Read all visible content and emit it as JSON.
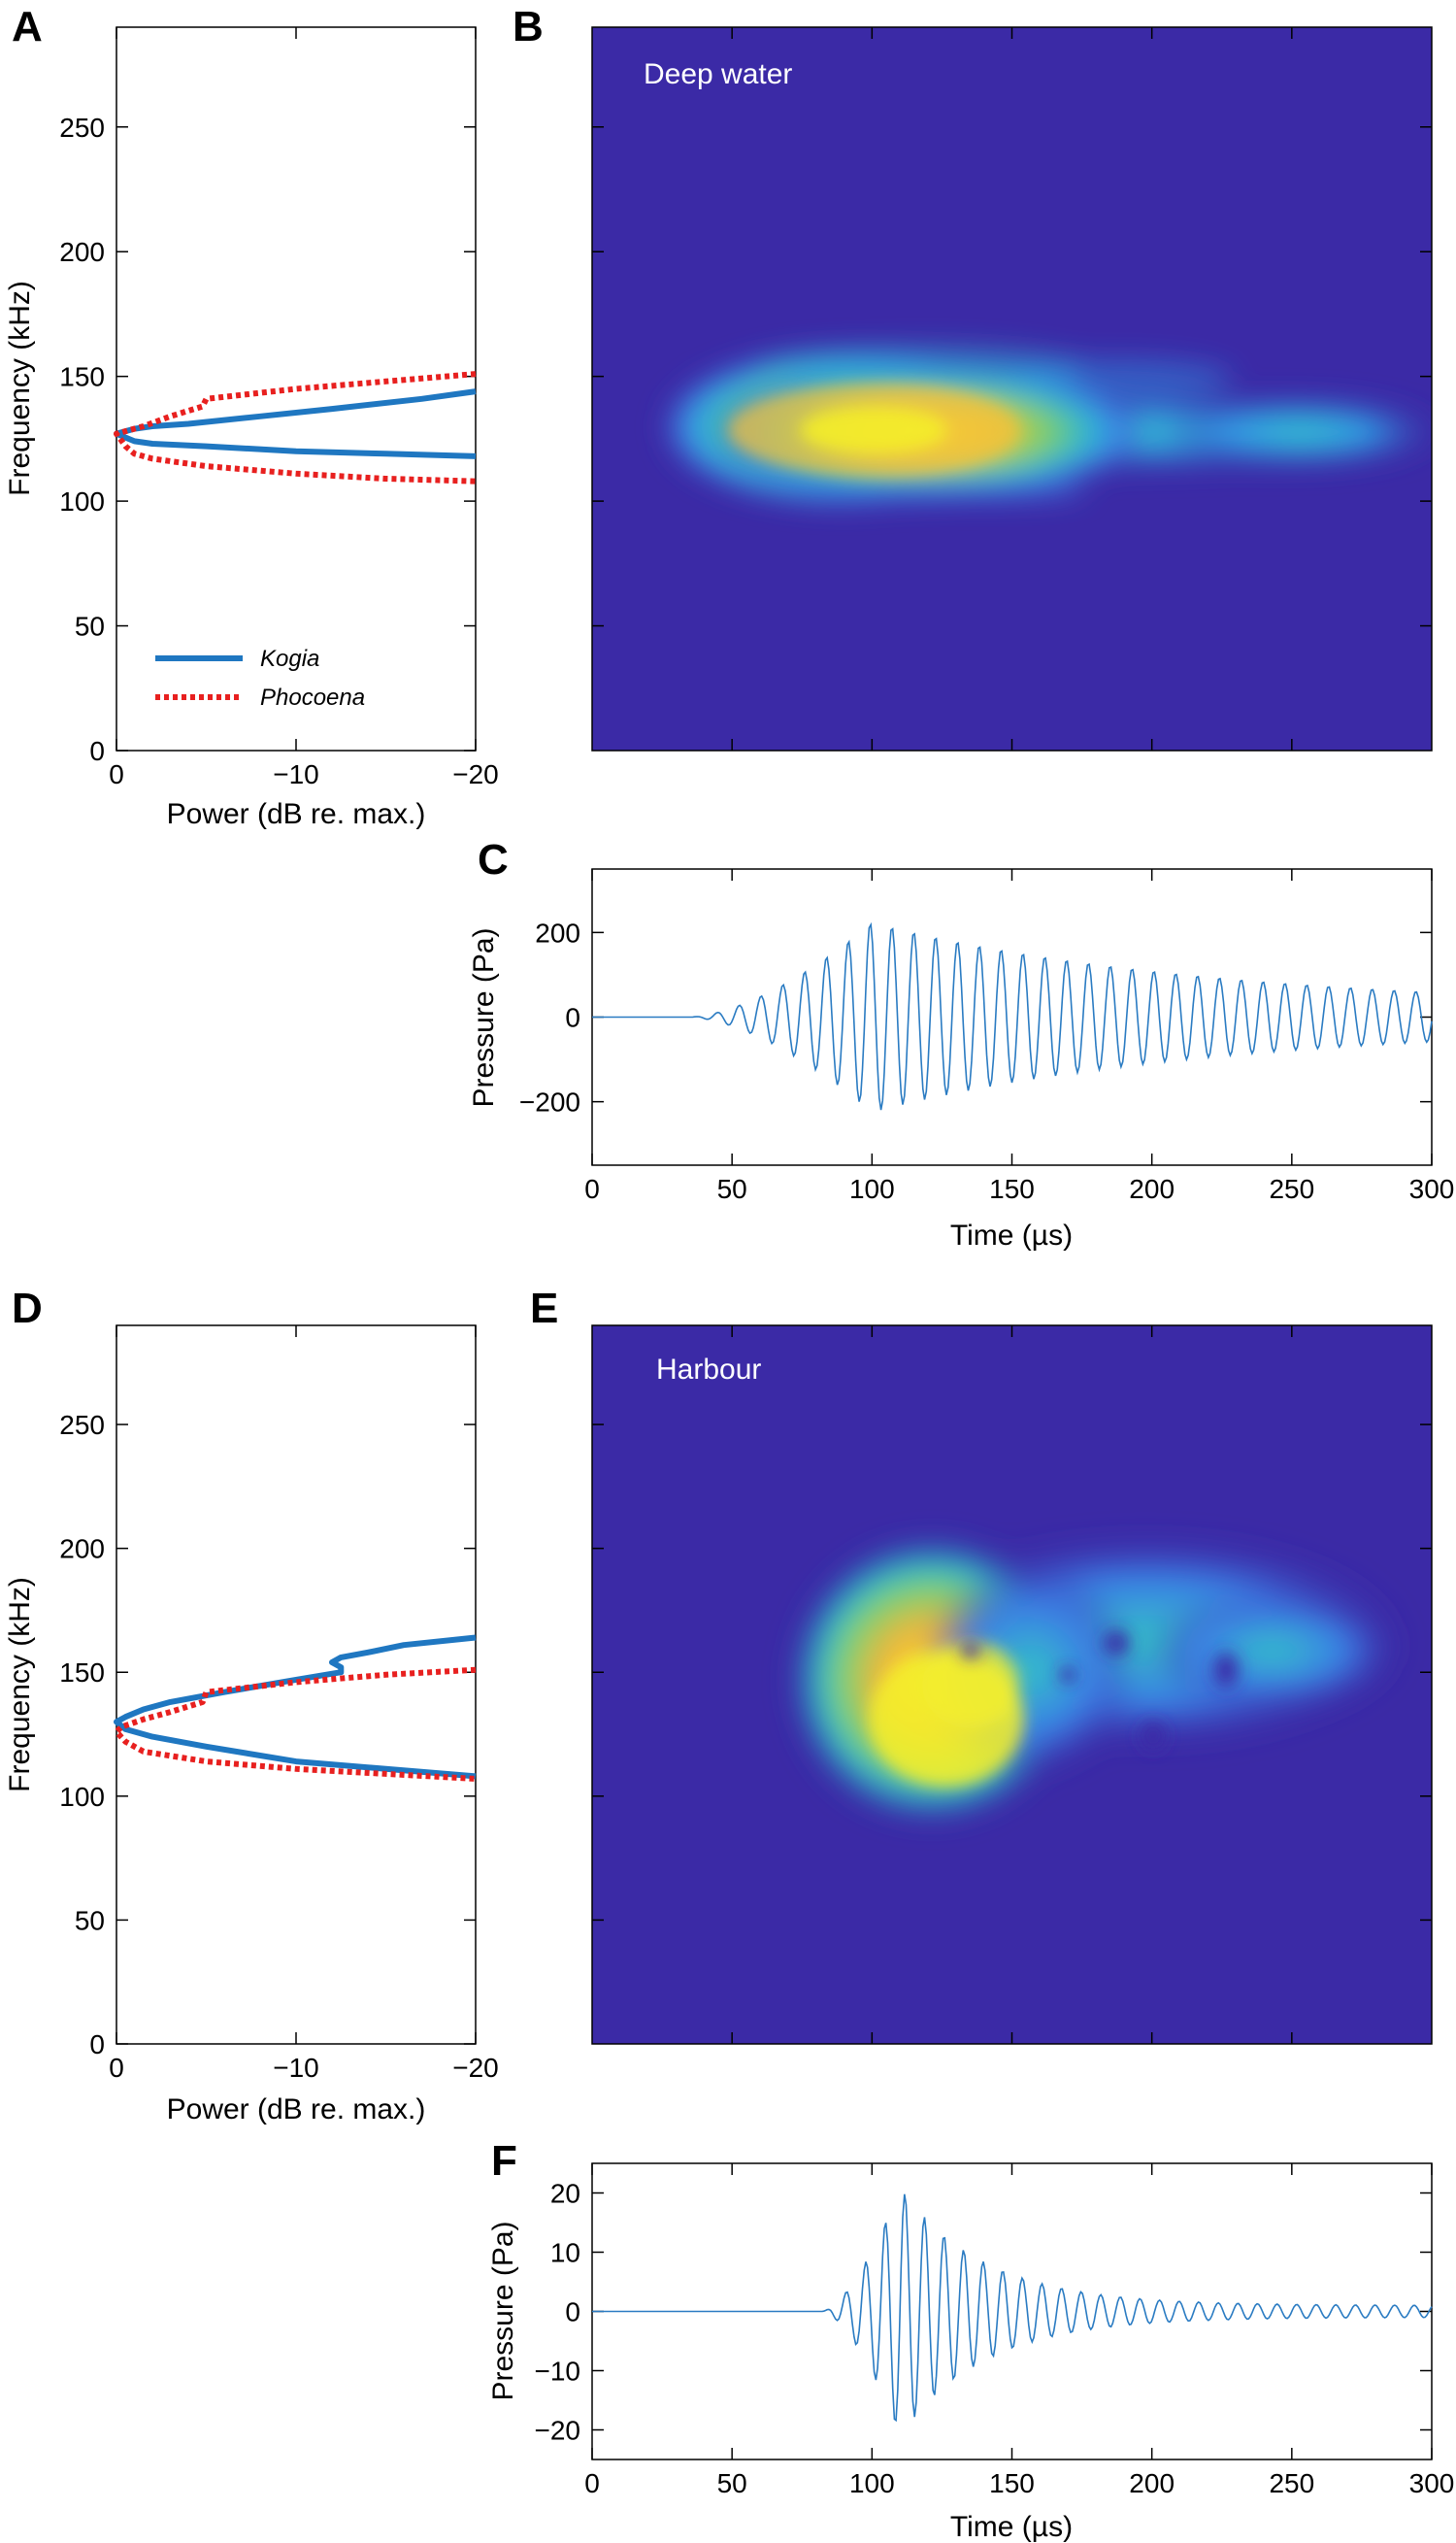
{
  "colors": {
    "kogia": "#1f77c1",
    "phocoena": "#e8201f",
    "waveform": "#2a7bc2",
    "spectrogram_bg": "#3b2aa6",
    "spectrogram_peak": "#f5f02a"
  },
  "chart_data": [
    {
      "panel": "A",
      "type": "line",
      "xlabel": "Power (dB re. max.)",
      "ylabel": "Frequency (kHz)",
      "xlim": [
        0,
        -20
      ],
      "ylim": [
        0,
        290
      ],
      "xticks": [
        0,
        -10,
        -20
      ],
      "xticklabels": [
        "0",
        "−10",
        "−20"
      ],
      "yticks": [
        0,
        50,
        100,
        150,
        200,
        250
      ],
      "legend": {
        "placement": "lower-left",
        "entries": [
          "Kogia",
          "Phocoena"
        ]
      },
      "series": [
        {
          "name": "Kogia",
          "style": "solid",
          "points": [
            [
              -20,
              144
            ],
            [
              -17,
              141
            ],
            [
              -12,
              137
            ],
            [
              -8,
              134
            ],
            [
              -4,
              131
            ],
            [
              -2,
              130
            ],
            [
              -1,
              129
            ],
            [
              0,
              127
            ],
            [
              -1,
              124
            ],
            [
              -2,
              123
            ],
            [
              -5,
              122
            ],
            [
              -10,
              120
            ],
            [
              -15,
              119
            ],
            [
              -20,
              118
            ]
          ]
        },
        {
          "name": "Phocoena",
          "style": "dotted",
          "points": [
            [
              -20,
              151
            ],
            [
              -15,
              148
            ],
            [
              -10,
              145
            ],
            [
              -5,
              141
            ],
            [
              -4.8,
              138
            ],
            [
              -3,
              134
            ],
            [
              -1.5,
              130
            ],
            [
              0,
              127
            ],
            [
              -0.5,
              122
            ],
            [
              -1,
              119
            ],
            [
              -2,
              117
            ],
            [
              -5,
              114
            ],
            [
              -10,
              111
            ],
            [
              -15,
              109
            ],
            [
              -20,
              108
            ]
          ]
        }
      ]
    },
    {
      "panel": "B",
      "type": "heatmap",
      "annotation": "Deep water",
      "x_range": [
        0,
        300
      ],
      "y_range": [
        0,
        290
      ],
      "peak": {
        "x": 100,
        "y": 128
      }
    },
    {
      "panel": "C",
      "type": "line",
      "xlabel": "Time (µs)",
      "ylabel": "Pressure (Pa)",
      "xlim": [
        0,
        300
      ],
      "ylim": [
        -350,
        350
      ],
      "xticks": [
        0,
        50,
        100,
        150,
        200,
        250,
        300
      ],
      "yticks": [
        -200,
        0,
        200
      ],
      "yticklabels": [
        "−200",
        "0",
        "200"
      ],
      "waveform": {
        "onset": 35,
        "peak_time": 100,
        "peak_amplitude": 225,
        "rise": 45,
        "decay": 120,
        "period": 7.8,
        "floor": 20
      }
    },
    {
      "panel": "D",
      "type": "line",
      "xlabel": "Power (dB re. max.)",
      "ylabel": "Frequency (kHz)",
      "xlim": [
        0,
        -20
      ],
      "ylim": [
        0,
        290
      ],
      "xticks": [
        0,
        -10,
        -20
      ],
      "xticklabels": [
        "0",
        "−10",
        "−20"
      ],
      "yticks": [
        0,
        50,
        100,
        150,
        200,
        250
      ],
      "series": [
        {
          "name": "Kogia",
          "style": "solid",
          "points": [
            [
              -20,
              164
            ],
            [
              -16,
              161
            ],
            [
              -14,
              158
            ],
            [
              -12.5,
              156
            ],
            [
              -12,
              154
            ],
            [
              -12.5,
              152
            ],
            [
              -12.5,
              150
            ],
            [
              -10,
              147
            ],
            [
              -6,
              142
            ],
            [
              -3,
              138
            ],
            [
              -1.5,
              135
            ],
            [
              -0.5,
              132
            ],
            [
              0,
              130
            ],
            [
              -0.5,
              127
            ],
            [
              -2,
              124
            ],
            [
              -5,
              120
            ],
            [
              -10,
              114
            ],
            [
              -15,
              111
            ],
            [
              -20,
              108
            ]
          ]
        },
        {
          "name": "Phocoena",
          "style": "dotted",
          "points": [
            [
              -20,
              151
            ],
            [
              -15,
              149
            ],
            [
              -10,
              146
            ],
            [
              -5,
              142
            ],
            [
              -4.8,
              138
            ],
            [
              -3,
              134
            ],
            [
              -1.5,
              131
            ],
            [
              -0.3,
              128
            ],
            [
              0,
              126
            ],
            [
              -0.5,
              122
            ],
            [
              -1.5,
              118
            ],
            [
              -5,
              114
            ],
            [
              -10,
              111
            ],
            [
              -15,
              109
            ],
            [
              -20,
              107
            ]
          ]
        }
      ]
    },
    {
      "panel": "E",
      "type": "heatmap",
      "annotation": "Harbour",
      "x_range": [
        0,
        300
      ],
      "y_range": [
        0,
        290
      ],
      "peak": {
        "x": 125,
        "y": 130
      }
    },
    {
      "panel": "F",
      "type": "line",
      "xlabel": "Time (µs)",
      "ylabel": "Pressure (Pa)",
      "xlim": [
        0,
        300
      ],
      "ylim": [
        -25,
        25
      ],
      "xticks": [
        0,
        50,
        100,
        150,
        200,
        250,
        300
      ],
      "yticks": [
        -20,
        -10,
        0,
        10,
        20
      ],
      "yticklabels": [
        "−20",
        "−10",
        "0",
        "10",
        "20"
      ],
      "waveform": {
        "onset": 82,
        "peak_time": 110,
        "peak_amplitude": 21,
        "rise": 10,
        "decay": 30,
        "period": 7.0,
        "floor": 1.0
      }
    }
  ]
}
